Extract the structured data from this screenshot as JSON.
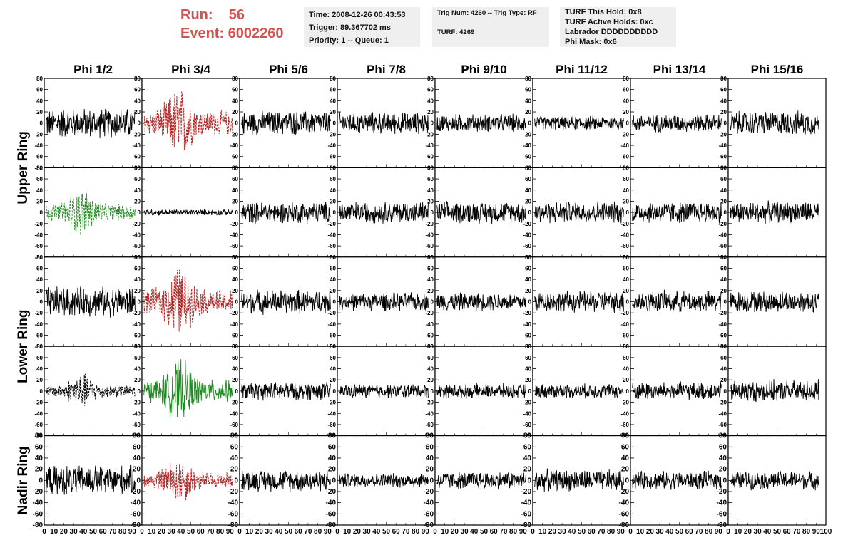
{
  "header": {
    "run_label": "Run:    56",
    "event_label": "Event: 6002260",
    "time": "Time: 2008-12-26 00:43:53",
    "trigger": "Trigger: 89.367702 ms",
    "priority": "Priority: 1 -- Queue: 1",
    "trig_num": "Trig Num: 4260 -- Trig Type: RF",
    "turf": "TURF: 4269",
    "turf_this_hold": "TURF This Hold: 0x8",
    "turf_active_holds": "TURF Active Holds: 0xc",
    "labrador": "Labrador DDDDDDDDDD",
    "phi_mask": "Phi Mask: 0x6",
    "accent_color": "#d0534f"
  },
  "chart_data": {
    "type": "line",
    "columns": [
      "Phi 1/2",
      "Phi 3/4",
      "Phi 5/6",
      "Phi 7/8",
      "Phi 9/10",
      "Phi 11/12",
      "Phi 13/14",
      "Phi 15/16"
    ],
    "ring_labels": [
      "Upper Ring",
      "Lower Ring",
      "Nadir Ring"
    ],
    "ring_rows": [
      [
        0,
        1
      ],
      [
        2,
        3
      ],
      [
        4,
        4
      ]
    ],
    "xlim": [
      0,
      100
    ],
    "ylim": [
      -80,
      80
    ],
    "yticks": [
      "-80",
      "-60",
      "-40",
      "-20",
      "0",
      "20",
      "40",
      "60",
      "80"
    ],
    "xtick_labels": [
      "0",
      "10",
      "20",
      "30",
      "40",
      "50",
      "60",
      "70",
      "80",
      "90",
      "100"
    ],
    "series_colors": {
      "default": "#000000",
      "triggered": "#b22222",
      "trigger_green": "#1f8a1f"
    },
    "panel_styles": [
      [
        "solid",
        "dashed-red",
        "solid",
        "solid",
        "solid",
        "solid",
        "solid",
        "solid"
      ],
      [
        "dashed-green",
        "solid",
        "solid",
        "solid",
        "solid",
        "solid",
        "solid",
        "solid"
      ],
      [
        "solid",
        "dashed-red",
        "solid",
        "solid",
        "solid",
        "solid",
        "solid",
        "solid"
      ],
      [
        "dashed-black",
        "solid-green",
        "solid",
        "solid",
        "solid",
        "solid",
        "solid",
        "solid"
      ],
      [
        "solid",
        "dashed-red",
        "solid",
        "solid",
        "solid",
        "solid",
        "solid",
        "solid"
      ]
    ],
    "panel_amplitudes": [
      [
        25,
        45,
        20,
        18,
        15,
        12,
        15,
        20
      ],
      [
        30,
        5,
        18,
        18,
        18,
        18,
        18,
        18
      ],
      [
        25,
        45,
        20,
        15,
        15,
        18,
        18,
        18
      ],
      [
        22,
        40,
        15,
        12,
        12,
        12,
        15,
        18
      ],
      [
        25,
        30,
        18,
        12,
        15,
        18,
        15,
        15
      ]
    ]
  }
}
